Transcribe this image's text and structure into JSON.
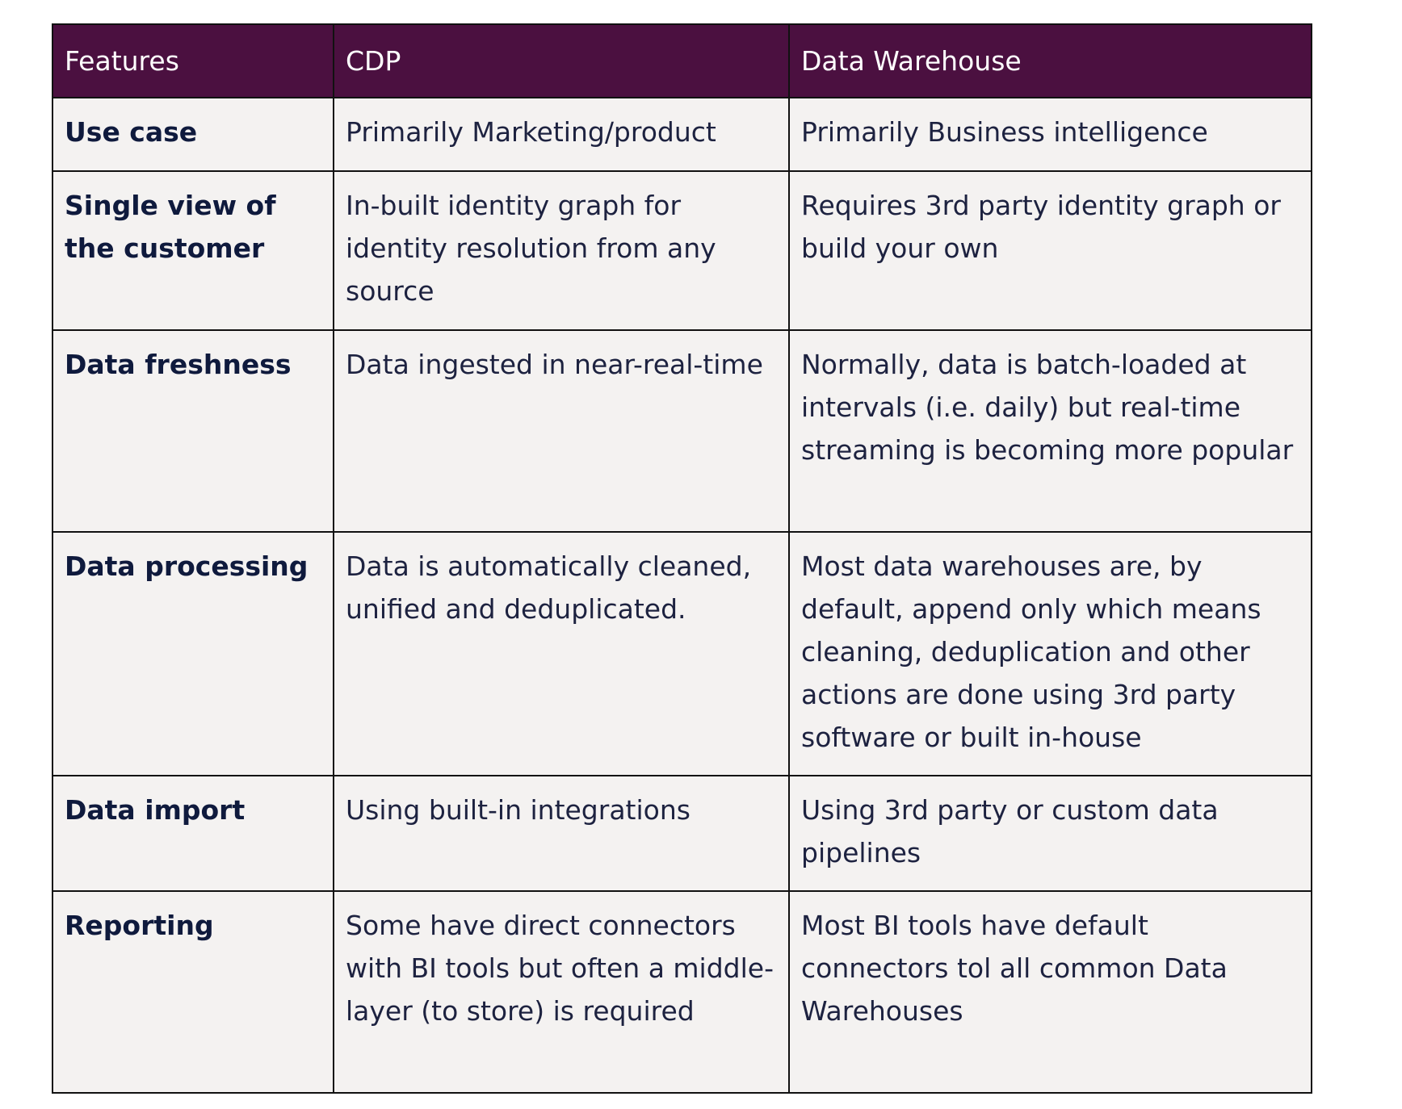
{
  "table": {
    "headers": [
      "Features",
      "CDP",
      "Data Warehouse"
    ],
    "rows": [
      {
        "feature": "Use case",
        "cdp": "Primarily Marketing/product",
        "warehouse": "Primarily Business intelligence"
      },
      {
        "feature": "Single view of the customer",
        "cdp": "In-built identity graph for identity resolution from any source",
        "warehouse": "Requires 3rd party identity graph or build your own"
      },
      {
        "feature": "Data freshness",
        "cdp": "Data ingested in near-real-time",
        "warehouse": "Normally, data is batch-loaded at intervals (i.e. daily) but real-time streaming is becoming more popular"
      },
      {
        "feature": "Data processing",
        "cdp": "Data is automatically cleaned, unified and deduplicated.",
        "warehouse": "Most data warehouses are, by default, append only which means cleaning, deduplication and other actions are done using 3rd party software or built in-house"
      },
      {
        "feature": "Data import",
        "cdp": "Using built-in integrations",
        "warehouse": "Using 3rd party or custom data pipelines"
      },
      {
        "feature": "Reporting",
        "cdp": "Some have direct connectors with BI tools but often a middle-layer (to store) is required",
        "warehouse": "Most BI tools have default connectors tol all common Data Warehouses"
      }
    ]
  },
  "colors": {
    "header_bg": "#4b1040",
    "header_text": "#ffffff",
    "cell_bg": "#f4f2f1",
    "text": "#1d2240",
    "border": "#111111"
  }
}
